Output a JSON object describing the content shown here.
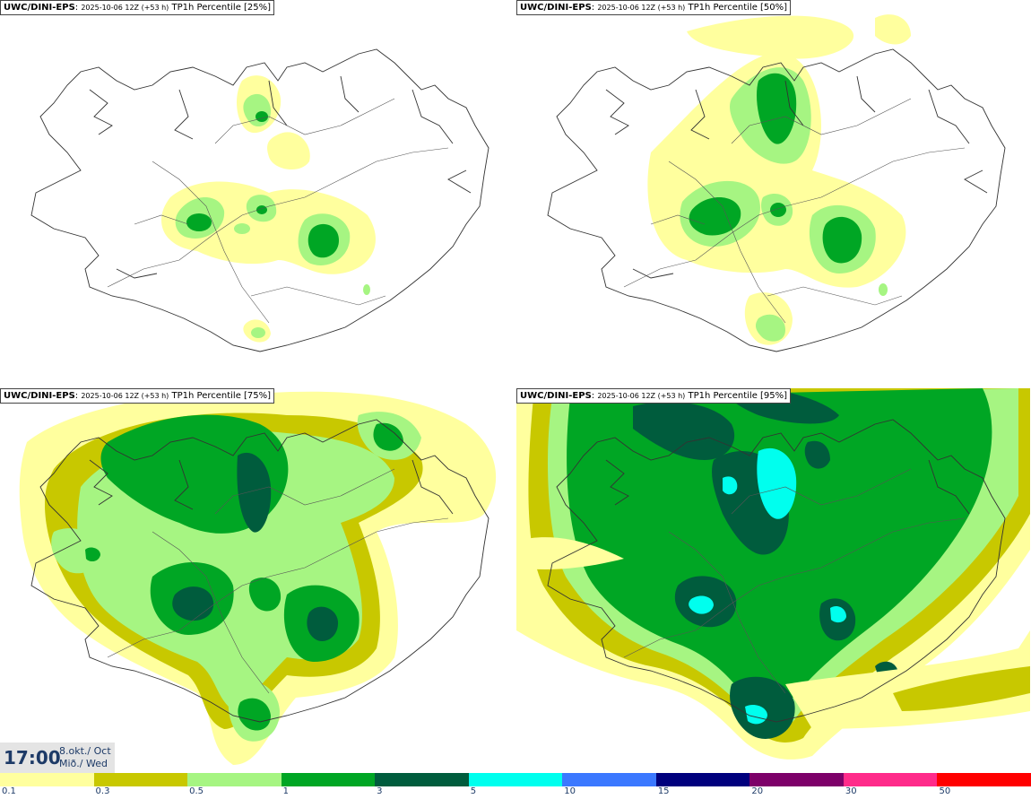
{
  "panels": [
    {
      "source": "UWC/DINI-EPS",
      "run": "2025-10-06 12Z (+53 h)",
      "field": "TP1h Percentile [25%]"
    },
    {
      "source": "UWC/DINI-EPS",
      "run": "2025-10-06 12Z (+53 h)",
      "field": "TP1h Percentile [50%]"
    },
    {
      "source": "UWC/DINI-EPS",
      "run": "2025-10-06 12Z (+53 h)",
      "field": "TP1h Percentile [75%]"
    },
    {
      "source": "UWC/DINI-EPS",
      "run": "2025-10-06 12Z (+53 h)",
      "field": "TP1h Percentile [95%]"
    }
  ],
  "valid_time": {
    "clock": "17:00",
    "date_line1": "8.okt./ Oct",
    "date_line2": "Mið./ Wed"
  },
  "legend": {
    "colors": [
      "#ffff9e",
      "#c8c800",
      "#a6f582",
      "#00a624",
      "#005c3d",
      "#00ffee",
      "#3b78ff",
      "#00007d",
      "#7d0069",
      "#ff2b8a",
      "#ff0000"
    ],
    "labels": [
      "0.1",
      "0.3",
      "0.5",
      "1",
      "3",
      "5",
      "10",
      "15",
      "20",
      "30",
      "50"
    ]
  },
  "map_colors": {
    "coast": "#333333",
    "roads": "#555555",
    "background": "#ffffff"
  }
}
